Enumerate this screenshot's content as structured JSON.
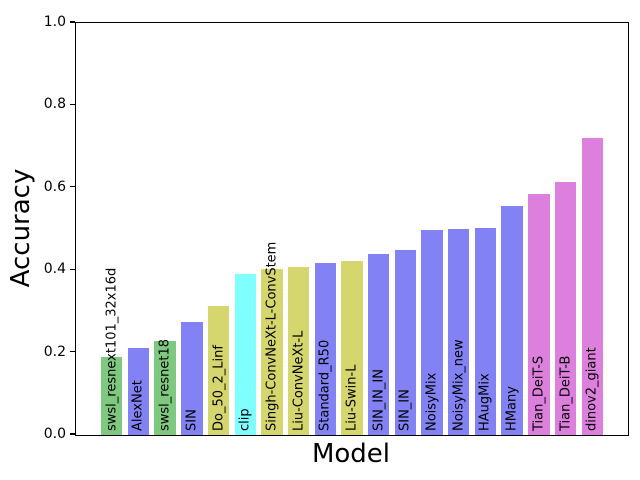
{
  "figure": {
    "background": "#ffffff"
  },
  "chart_data": {
    "type": "bar",
    "title": "",
    "xlabel": "Model",
    "ylabel": "Accuracy",
    "ylim": [
      0.0,
      1.0
    ],
    "ytick_labels": [
      "0.0",
      "0.2",
      "0.4",
      "0.6",
      "0.8",
      "1.0"
    ],
    "ytick_values": [
      0.0,
      0.2,
      0.4,
      0.6,
      0.8,
      1.0
    ],
    "grid": false,
    "legend_position": "none",
    "bar_label_rotation_deg": 90,
    "categories": [
      "swsl_resnext101_32x16d",
      "AlexNet",
      "swsl_resnet18",
      "SIN",
      "Do_50_2_Linf",
      "clip",
      "Singh-ConvNeXt-L-ConvStem",
      "Liu-ConvNeXt-L",
      "Standard_R50",
      "Liu-Swin-L",
      "SIN_IN_IN",
      "SIN_IN",
      "NoisyMix",
      "NoisyMix_new",
      "HAugMix",
      "HMany",
      "Tian_DeiT-S",
      "Tian_DeiT-B",
      "dinov2_giant"
    ],
    "values": [
      0.19,
      0.212,
      0.227,
      0.275,
      0.312,
      0.39,
      0.404,
      0.407,
      0.417,
      0.423,
      0.44,
      0.449,
      0.497,
      0.5,
      0.503,
      0.557,
      0.586,
      0.615,
      0.72
    ],
    "palette": {
      "green": "#7fc87f",
      "blue": "#8282f5",
      "khaki": "#d6d66e",
      "cyan": "#80ffff",
      "violet": "#dd80dd"
    },
    "bar_color_keys": [
      "green",
      "blue",
      "green",
      "blue",
      "khaki",
      "cyan",
      "khaki",
      "khaki",
      "blue",
      "khaki",
      "blue",
      "blue",
      "blue",
      "blue",
      "blue",
      "blue",
      "violet",
      "violet",
      "violet"
    ]
  }
}
